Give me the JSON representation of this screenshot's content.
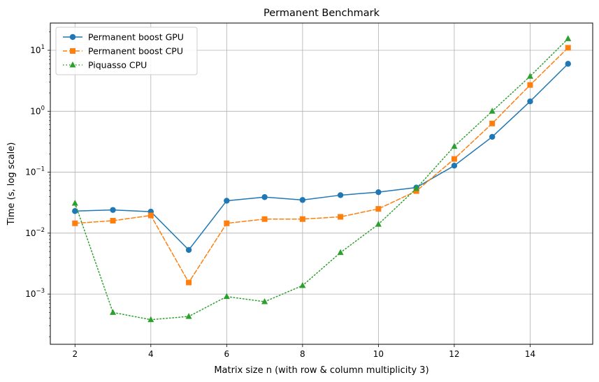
{
  "chart_data": {
    "type": "line",
    "title": "Permanent Benchmark",
    "xlabel": "Matrix size n (with row & column multiplicity 3)",
    "ylabel": "Time (s, log scale)",
    "x_ticks": [
      2,
      4,
      6,
      8,
      10,
      12,
      14
    ],
    "y_ticks": [
      {
        "base": "10",
        "exp": "−3",
        "value": 0.001
      },
      {
        "base": "10",
        "exp": "−2",
        "value": 0.01
      },
      {
        "base": "10",
        "exp": "−1",
        "value": 0.1
      },
      {
        "base": "10",
        "exp": "0",
        "value": 1
      },
      {
        "base": "10",
        "exp": "1",
        "value": 10
      }
    ],
    "xlim": [
      1.35,
      15.65
    ],
    "ylim": [
      0.00015,
      28
    ],
    "yscale": "log",
    "grid": true,
    "legend_position": "top-left",
    "x": [
      2,
      3,
      4,
      5,
      6,
      7,
      8,
      9,
      10,
      11,
      12,
      13,
      14,
      15
    ],
    "series": [
      {
        "name": "Permanent boost GPU",
        "color": "#1f77b4",
        "marker": "circle",
        "dash": "solid",
        "values": [
          0.023,
          0.024,
          0.0225,
          0.0053,
          0.034,
          0.039,
          0.035,
          0.042,
          0.047,
          0.056,
          0.128,
          0.38,
          1.45,
          6.0
        ]
      },
      {
        "name": "Permanent boost CPU",
        "color": "#ff7f0e",
        "marker": "square",
        "dash": "dashed",
        "values": [
          0.0145,
          0.016,
          0.0195,
          0.00155,
          0.0145,
          0.017,
          0.017,
          0.0185,
          0.025,
          0.049,
          0.165,
          0.63,
          2.7,
          11.0
        ]
      },
      {
        "name": "Piquasso CPU",
        "color": "#2ca02c",
        "marker": "triangle",
        "dash": "dotted",
        "values": [
          0.031,
          0.0005,
          0.00038,
          0.00043,
          0.00091,
          0.00075,
          0.00138,
          0.0048,
          0.014,
          0.054,
          0.265,
          1.0,
          3.75,
          15.5
        ]
      }
    ]
  }
}
